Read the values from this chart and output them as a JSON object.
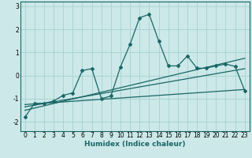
{
  "title": "",
  "xlabel": "Humidex (Indice chaleur)",
  "bg_color": "#cce8e8",
  "grid_color": "#aad4d4",
  "line_color": "#1a6666",
  "xlim": [
    -0.5,
    23.5
  ],
  "ylim": [
    -2.4,
    3.2
  ],
  "xticks": [
    0,
    1,
    2,
    3,
    4,
    5,
    6,
    7,
    8,
    9,
    10,
    11,
    12,
    13,
    14,
    15,
    16,
    17,
    18,
    19,
    20,
    21,
    22,
    23
  ],
  "yticks": [
    -2,
    -1,
    0,
    1,
    2,
    3
  ],
  "main_x": [
    0,
    1,
    2,
    3,
    4,
    5,
    6,
    7,
    8,
    9,
    10,
    11,
    12,
    13,
    14,
    15,
    16,
    17,
    18,
    19,
    20,
    21,
    22,
    23
  ],
  "main_y": [
    -1.8,
    -1.2,
    -1.2,
    -1.1,
    -0.85,
    -0.75,
    0.22,
    0.3,
    -1.0,
    -0.88,
    0.38,
    1.35,
    2.5,
    2.65,
    1.5,
    0.42,
    0.42,
    0.85,
    0.32,
    0.32,
    0.42,
    0.5,
    0.4,
    -0.65
  ],
  "line1_x": [
    0,
    23
  ],
  "line1_y": [
    -1.35,
    0.3
  ],
  "line2_x": [
    0,
    23
  ],
  "line2_y": [
    -1.25,
    -0.6
  ],
  "line3_x": [
    0,
    23
  ],
  "line3_y": [
    -1.5,
    0.75
  ]
}
